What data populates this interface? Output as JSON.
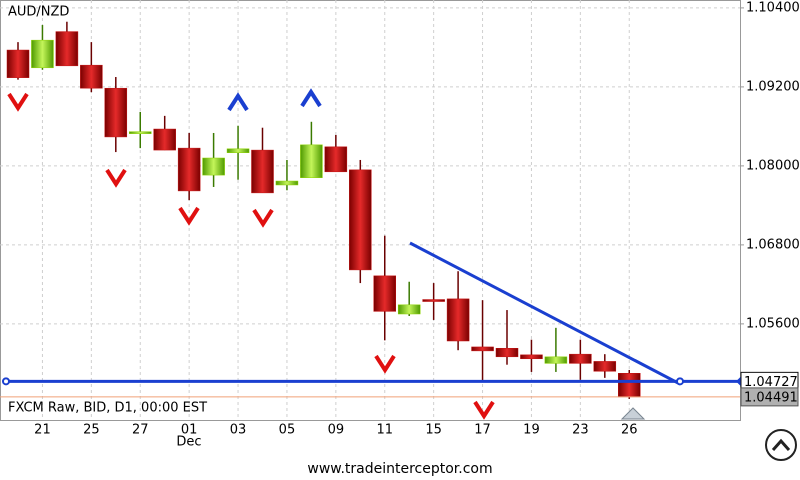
{
  "chart_data": {
    "type": "candlestick",
    "title": "AUD/NZD",
    "subtitle": "FXCM Raw, BID, D1, 00:00 EST",
    "footer": "www.tradeinterceptor.com",
    "month_label": "Dec",
    "categories": [
      null,
      "21",
      null,
      "25",
      null,
      "27",
      null,
      "01",
      null,
      "03",
      null,
      "05",
      null,
      "09",
      null,
      "11",
      null,
      "15",
      null,
      "17",
      null,
      "19",
      null,
      "23",
      null,
      "26"
    ],
    "open": [
      1.0976,
      1.0949,
      1.1004,
      1.0953,
      1.0918,
      1.0851,
      1.0856,
      1.0827,
      1.0786,
      1.082,
      1.0824,
      1.0771,
      1.0782,
      1.0829,
      1.0794,
      1.0633,
      1.0575,
      1.0597,
      1.0598,
      1.0525,
      1.0523,
      1.0513,
      1.05,
      1.0514,
      1.0503,
      1.0485
    ],
    "high": [
      1.0988,
      1.1014,
      1.1019,
      1.0988,
      1.0935,
      1.0882,
      1.0876,
      1.085,
      1.085,
      1.0861,
      1.0858,
      1.0809,
      1.0867,
      1.0847,
      1.0809,
      1.0694,
      1.0624,
      1.0622,
      1.064,
      1.0596,
      1.0581,
      1.0536,
      1.0554,
      1.0536,
      1.0514,
      1.049
    ],
    "low": [
      1.0931,
      1.0946,
      1.0952,
      1.0912,
      1.0821,
      1.0827,
      1.0824,
      1.0748,
      1.0768,
      1.0779,
      1.0759,
      1.0763,
      1.0782,
      1.0791,
      1.0622,
      1.0535,
      1.0572,
      1.0566,
      1.052,
      1.0472,
      1.0498,
      1.0487,
      1.0487,
      1.0475,
      1.0478,
      1.0446
    ],
    "close": [
      1.0934,
      1.0991,
      1.0952,
      1.0918,
      1.0844,
      1.0852,
      1.0824,
      1.0762,
      1.0812,
      1.0826,
      1.0759,
      1.0777,
      1.0832,
      1.0791,
      1.0642,
      1.0579,
      1.0589,
      1.0595,
      1.0534,
      1.0519,
      1.051,
      1.0507,
      1.051,
      1.05,
      1.0488,
      1.04491
    ],
    "up_color": "#8fd400",
    "down_color": "#c41010",
    "price_lines": [
      1.04727,
      1.04491
    ],
    "ylim": [
      1.0414,
      1.1052
    ],
    "yticks": [
      {
        "value": 1.104,
        "label": "1.10400"
      },
      {
        "value": 1.092,
        "label": "1.09200"
      },
      {
        "value": 1.08,
        "label": "1.08000"
      },
      {
        "value": 1.068,
        "label": "1.06800"
      },
      {
        "value": 1.056,
        "label": "1.05600"
      }
    ],
    "grid": true
  }
}
